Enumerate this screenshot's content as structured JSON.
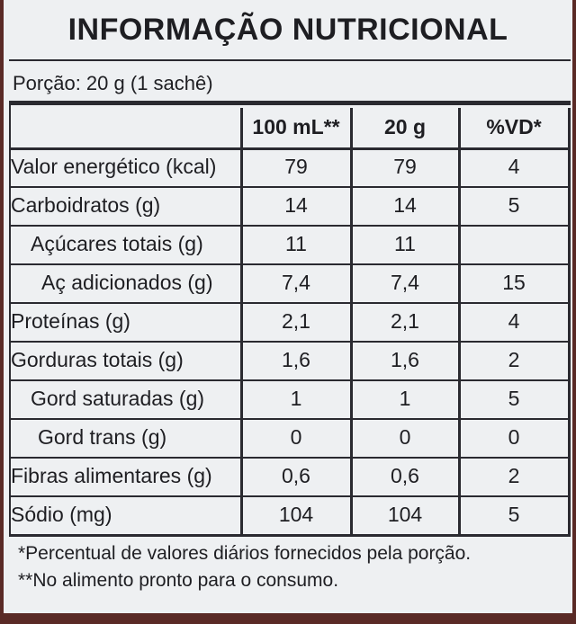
{
  "title": "INFORMAÇÃO NUTRICIONAL",
  "portion": "Porção: 20 g (1 sachê)",
  "table": {
    "columns": [
      "100 mL**",
      "20 g",
      "%VD*"
    ],
    "rows": [
      [
        "Valor energético (kcal)",
        "79",
        "79",
        "4"
      ],
      [
        "Carboidratos (g)",
        "14",
        "14",
        "5"
      ],
      [
        "Açúcares totais (g)",
        "11",
        "11"
      ],
      [
        "Aç adicionados (g)",
        "7,4",
        "7,4",
        "15"
      ],
      [
        "Proteínas (g)",
        "2,1",
        "2,1",
        "4"
      ],
      [
        "Gorduras totais (g)",
        "1,6",
        "1,6",
        "2"
      ],
      [
        "Gord saturadas (g)",
        "1",
        "1",
        "5"
      ],
      [
        "Gord trans (g)",
        "0",
        "0",
        "0"
      ],
      [
        "Fibras alimentares (g)",
        "0,6",
        "0,6",
        "2"
      ],
      [
        "Sódio (mg)",
        "104",
        "104",
        "5"
      ]
    ]
  },
  "footnotes": [
    "*Percentual de valores diários fornecidos pela porção.",
    "**No alimento pronto para o consumo."
  ]
}
